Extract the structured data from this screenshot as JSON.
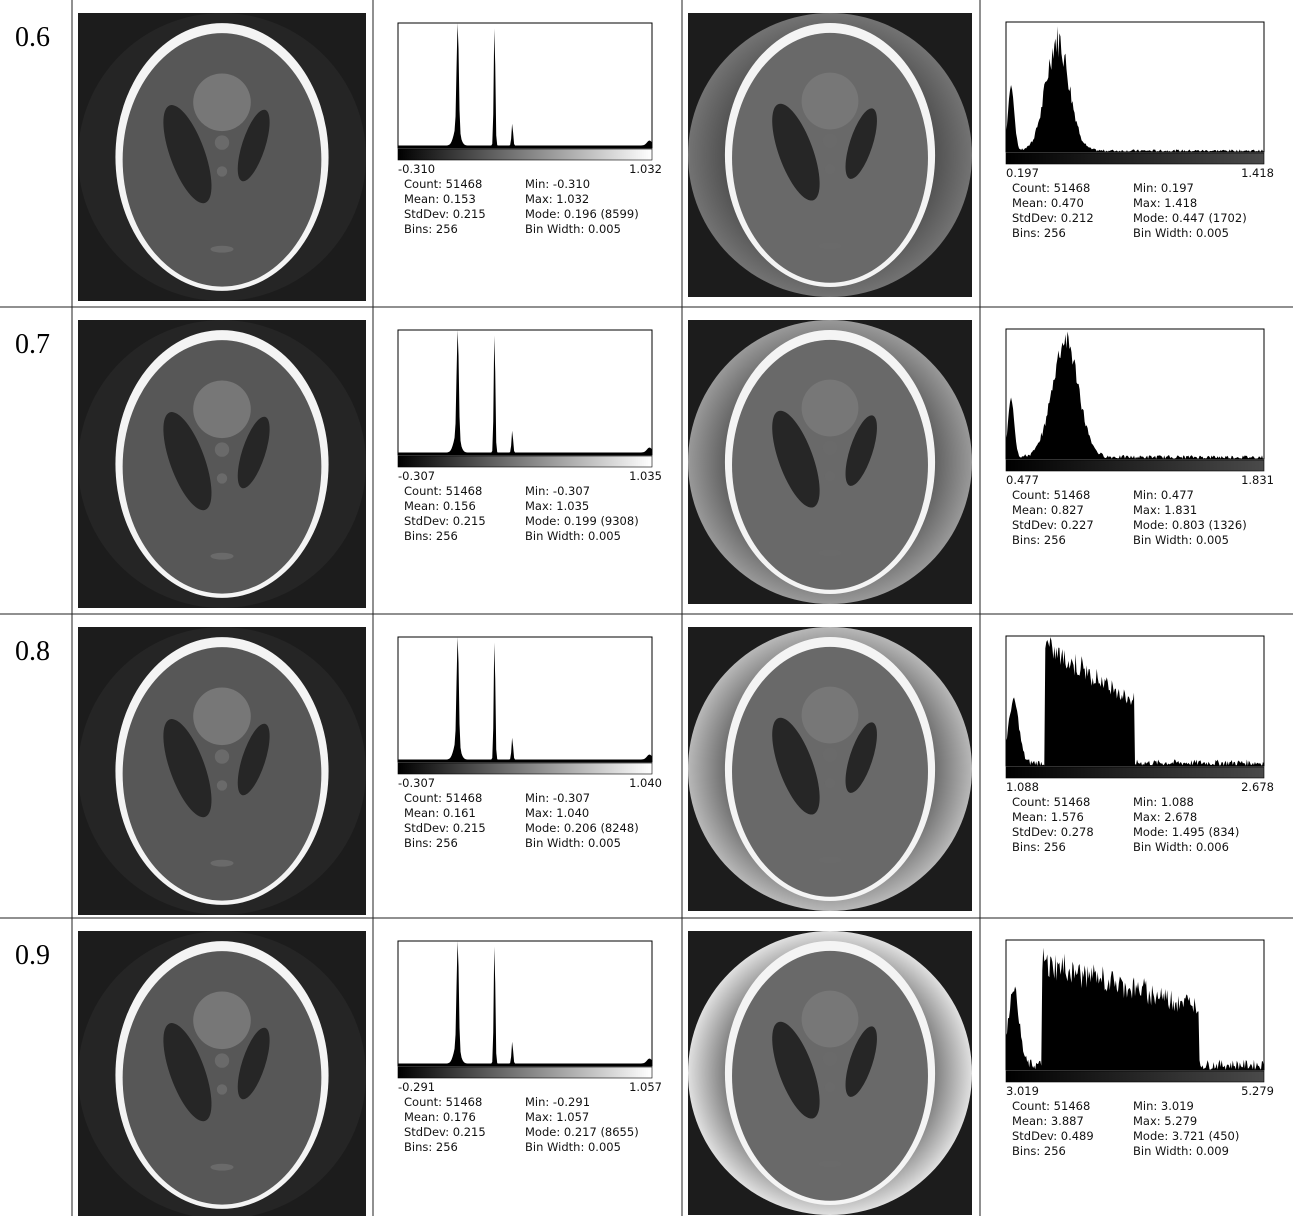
{
  "rows": [
    {
      "label": "0.6",
      "left_hist": {
        "min_label": "-0.310",
        "max_label": "1.032",
        "stats": [
          "Count: 51468",
          "Mean: 0.153",
          "StdDev: 0.215",
          "Bins: 256",
          "Min: -0.310",
          "Max: 1.032",
          "Mode: 0.196 (8599)",
          "Bin Width: 0.005"
        ]
      },
      "right_hist": {
        "min_label": "0.197",
        "max_label": "1.418",
        "stats": [
          "Count: 51468",
          "Mean: 0.470",
          "StdDev: 0.212",
          "Bins: 256",
          "Min: 0.197",
          "Max: 1.418",
          "Mode: 0.447 (1702)",
          "Bin Width: 0.005"
        ]
      }
    },
    {
      "label": "0.7",
      "left_hist": {
        "min_label": "-0.307",
        "max_label": "1.035",
        "stats": [
          "Count: 51468",
          "Mean: 0.156",
          "StdDev: 0.215",
          "Bins: 256",
          "Min: -0.307",
          "Max: 1.035",
          "Mode: 0.199 (9308)",
          "Bin Width: 0.005"
        ]
      },
      "right_hist": {
        "min_label": "0.477",
        "max_label": "1.831",
        "stats": [
          "Count: 51468",
          "Mean: 0.827",
          "StdDev: 0.227",
          "Bins: 256",
          "Min: 0.477",
          "Max: 1.831",
          "Mode: 0.803 (1326)",
          "Bin Width: 0.005"
        ]
      }
    },
    {
      "label": "0.8",
      "left_hist": {
        "min_label": "-0.307",
        "max_label": "1.040",
        "stats": [
          "Count: 51468",
          "Mean: 0.161",
          "StdDev: 0.215",
          "Bins: 256",
          "Min: -0.307",
          "Max: 1.040",
          "Mode: 0.206 (8248)",
          "Bin Width: 0.005"
        ]
      },
      "right_hist": {
        "min_label": "1.088",
        "max_label": "2.678",
        "stats": [
          "Count: 51468",
          "Mean: 1.576",
          "StdDev: 0.278",
          "Bins: 256",
          "Min: 1.088",
          "Max: 2.678",
          "Mode: 1.495 (834)",
          "Bin Width: 0.006"
        ]
      }
    },
    {
      "label": "0.9",
      "left_hist": {
        "min_label": "-0.291",
        "max_label": "1.057",
        "stats": [
          "Count: 51468",
          "Mean: 0.176",
          "StdDev: 0.215",
          "Bins: 256",
          "Min: -0.291",
          "Max: 1.057",
          "Mode: 0.217 (8655)",
          "Bin Width: 0.005"
        ]
      },
      "right_hist": {
        "min_label": "3.019",
        "max_label": "5.279",
        "stats": [
          "Count: 51468",
          "Mean: 3.887",
          "StdDev: 0.489",
          "Bins: 256",
          "Min: 3.019",
          "Max: 5.279",
          "Mode: 3.721 (450)",
          "Bin Width: 0.009"
        ]
      }
    }
  ]
}
